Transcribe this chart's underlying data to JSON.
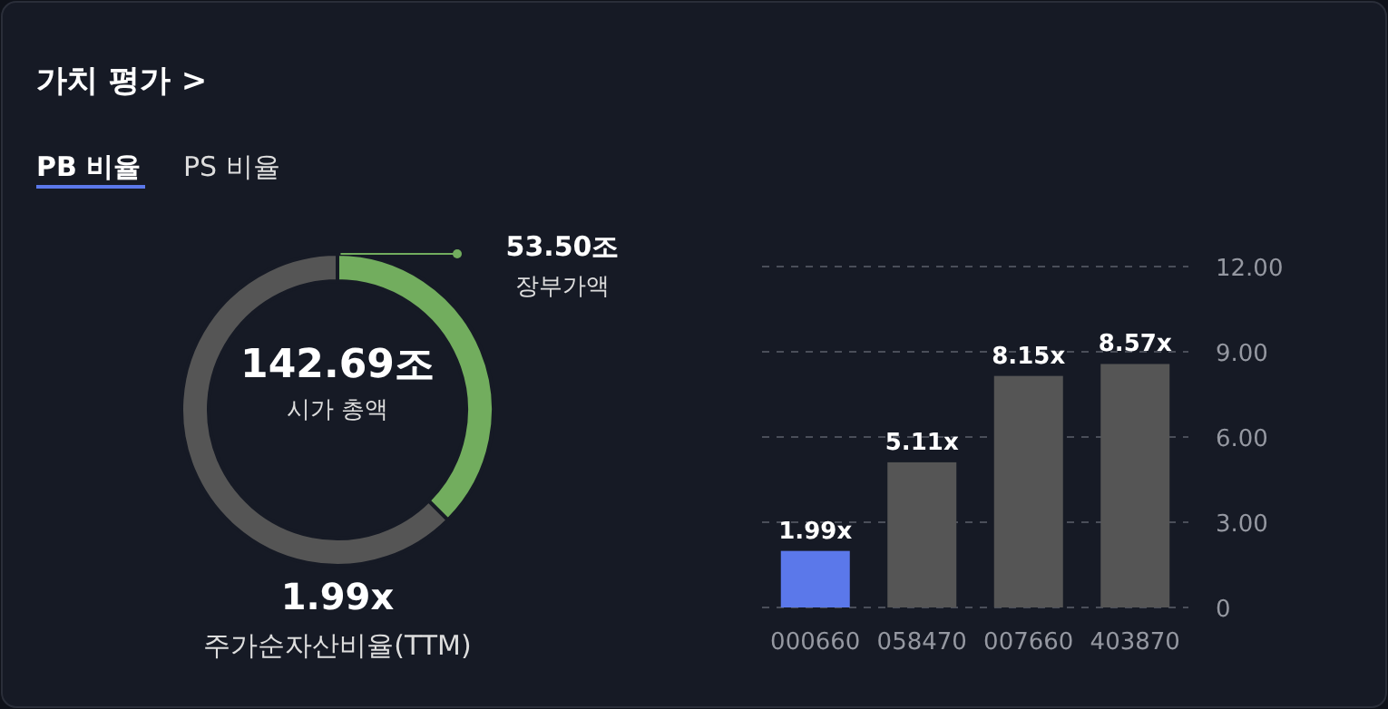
{
  "chart_data": [
    {
      "type": "donut",
      "title": "가치 평가 >",
      "categories": [
        "장부가액",
        null
      ],
      "values": [
        53.5,
        89.19
      ],
      "colors": [
        "#72ad5e",
        "#555555"
      ],
      "value_labels": [
        "53.50조",
        null
      ],
      "annotations": [
        "PB 비율",
        "PS 비율",
        "142.69조",
        "시가 총액",
        "1.99x",
        "주가순자산비율(TTM)"
      ]
    },
    {
      "type": "bar",
      "categories": [
        "000660",
        "058470",
        "007660",
        "403870"
      ],
      "values": [
        1.99,
        5.11,
        8.15,
        8.57
      ],
      "colors": [
        "#5b78ea",
        "#555555",
        "#555555",
        "#555555"
      ],
      "value_labels": [
        "1.99x",
        "5.11x",
        "8.15x",
        "8.57x"
      ],
      "ylim": [
        0,
        12
      ],
      "yticks": [
        0,
        {
          "value": 3,
          "label": "3.00"
        },
        {
          "value": 6,
          "label": "6.00"
        },
        {
          "value": 9,
          "label": "9.00"
        },
        {
          "value": 12,
          "label": "12.00"
        }
      ],
      "grid": "y"
    }
  ]
}
